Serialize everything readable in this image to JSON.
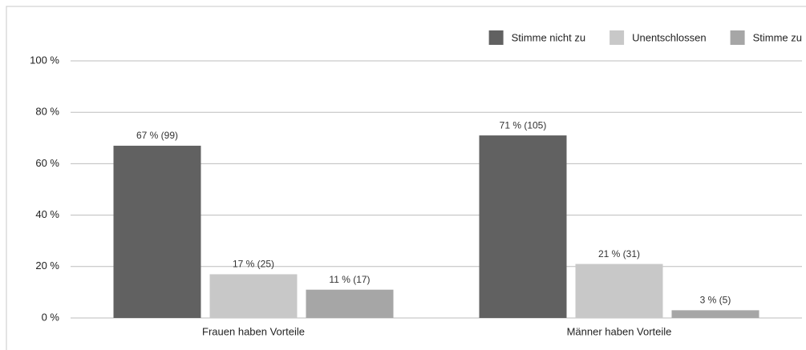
{
  "chart_data": {
    "type": "bar",
    "categories": [
      "Frauen haben Vorteile",
      "Männer haben Vorteile"
    ],
    "series": [
      {
        "name": "Stimme nicht zu",
        "color": "#616161",
        "values": [
          67,
          71
        ],
        "value_labels": [
          "67 % (99)",
          "71 % (105)"
        ]
      },
      {
        "name": "Unentschlossen",
        "color": "#c8c8c8",
        "values": [
          17,
          21
        ],
        "value_labels": [
          "17 % (25)",
          "21 % (31)"
        ]
      },
      {
        "name": "Stimme zu",
        "color": "#a6a6a6",
        "values": [
          11,
          3
        ],
        "value_labels": [
          "11 % (17)",
          "3 % (5)"
        ]
      }
    ],
    "ylim": [
      0,
      100
    ],
    "yticks": [
      {
        "value": 0,
        "label": "0 %"
      },
      {
        "value": 20,
        "label": "20 %"
      },
      {
        "value": 40,
        "label": "40 %"
      },
      {
        "value": 60,
        "label": "60 %"
      },
      {
        "value": 80,
        "label": "80 %"
      },
      {
        "value": 100,
        "label": "100 %"
      }
    ],
    "grid": true,
    "legend": "top-right"
  }
}
